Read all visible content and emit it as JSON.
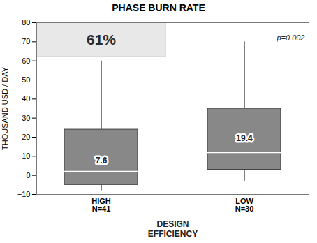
{
  "chart_data": {
    "type": "box",
    "title": "PHASE BURN RATE",
    "ylabel": "THOUSAND USD / DAY",
    "xlabel": "DESIGN\nEFFICIENCY",
    "categories": [
      "HIGH",
      "LOW"
    ],
    "n_labels": [
      "N=41",
      "N=30"
    ],
    "whisker_low": [
      -8,
      -3
    ],
    "q1": [
      -5,
      3
    ],
    "median": [
      2,
      12
    ],
    "q3": [
      24,
      35
    ],
    "whisker_high": [
      60,
      70
    ],
    "means": [
      7.6,
      19.4
    ],
    "data_labels": true,
    "colors": [
      [
        "#1b4080",
        "#2e6b3e"
      ],
      [
        "#c43510",
        "#e87020"
      ]
    ],
    "band": {
      "ylim": [
        62,
        80
      ],
      "label": "61%",
      "color": "#e8e8e8"
    },
    "annotations": [
      "p=0.002"
    ],
    "ylim": [
      -10,
      80
    ],
    "yticks": [
      -10,
      0,
      10,
      20,
      30,
      40,
      50,
      60,
      70,
      80
    ],
    "grid": false
  }
}
